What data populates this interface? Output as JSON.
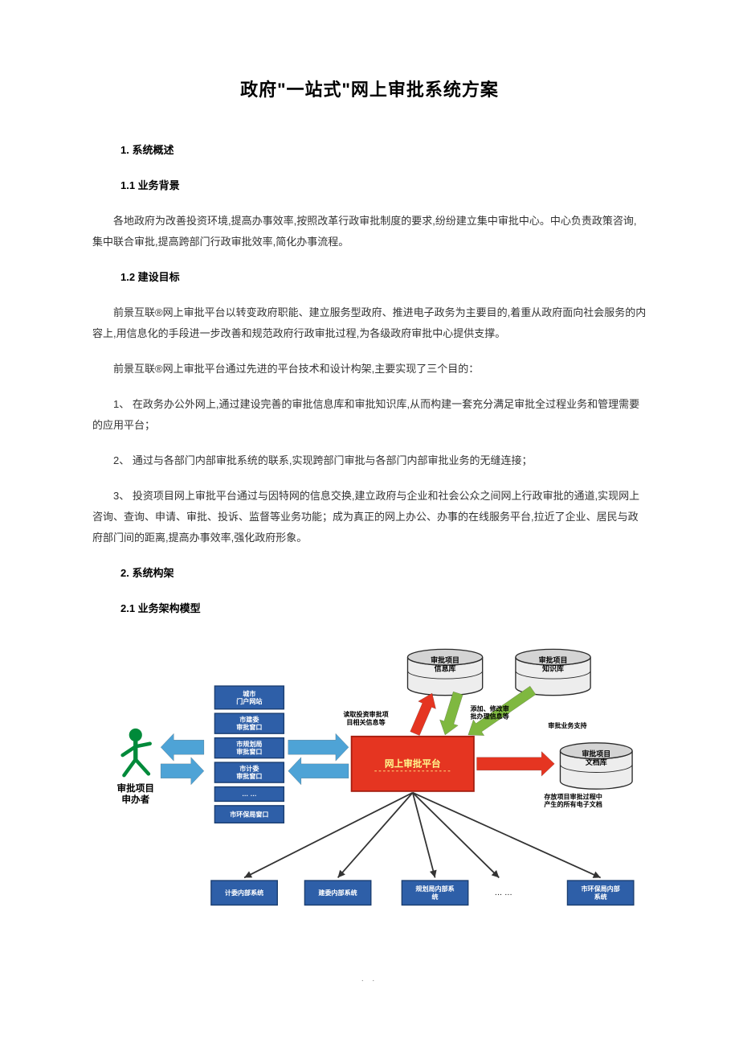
{
  "title": "政府\"一站式\"网上审批系统方案",
  "s1": {
    "heading": "1.  系统概述"
  },
  "s1_1": {
    "heading": "1.1  业务背景",
    "p1": "各地政府为改善投资环境,提高办事效率,按照改革行政审批制度的要求,纷纷建立集中审批中心。中心负责政策咨询,集中联合审批,提高跨部门行政审批效率,简化办事流程。"
  },
  "s1_2": {
    "heading": "1.2  建设目标",
    "p1": "前景互联®网上审批平台以转变政府职能、建立服务型政府、推进电子政务为主要目的,着重从政府面向社会服务的内容上,用信息化的手段进一步改善和规范政府行政审批过程,为各级政府审批中心提供支撑。",
    "p2": "前景互联®网上审批平台通过先进的平台技术和设计构架,主要实现了三个目的：",
    "li1": "1、  在政务办公外网上,通过建设完善的审批信息库和审批知识库,从而构建一套充分满足审批全过程业务和管理需要的应用平台；",
    "li2": "2、  通过与各部门内部审批系统的联系,实现跨部门审批与各部门内部审批业务的无缝连接；",
    "li3": "3、  投资项目网上审批平台通过与因特网的信息交换,建立政府与企业和社会公众之间网上行政审批的通道,实现网上咨询、查询、申请、审批、投诉、监督等业务功能；成为真正的网上办公、办事的在线服务平台,拉近了企业、居民与政府部门间的距离,提高办事效率,强化政府形象。"
  },
  "s2": {
    "heading": "2.  系统构架"
  },
  "s2_1": {
    "heading": "2.1  业务架构模型"
  },
  "diagram": {
    "colors": {
      "blue_fill": "#2e5fa8",
      "blue_border": "#1a3d6f",
      "red_fill": "#e53521",
      "red_border": "#a51d0f",
      "green_arrow": "#7fb840",
      "blue_arrow": "#4ea3d6",
      "dark_arrow": "#333333",
      "cyl_top": "#d4d4d4",
      "cyl_side": "#ededed",
      "cyl_border": "#2b2b2b",
      "person": "#008a3a",
      "yellow": "#fff68c",
      "text_black": "#000000",
      "text_white": "#ffffff"
    },
    "labels": {
      "applicant": "审批项目\n申办者",
      "portal": "城市\n门户网站",
      "win1": "市建委\n审批窗口",
      "win2": "市规划局\n审批窗口",
      "win3": "市计委\n审批窗口",
      "win_dots": "… …",
      "win4": "市环保局窗口",
      "platform": "网上审批平台",
      "cyl_info": "审批项目\n信息库",
      "cyl_know": "审批项目\n知识库",
      "cyl_doc": "审批项目\n文档库",
      "note_left": "读取投资审批项\n目相关信息等",
      "note_mid": "添加、修改审\n批办理信息等",
      "note_right": "审批业务支持",
      "note_doc": "存放项目审批过程中\n产生的所有电子文档",
      "sys1": "计委内部系统",
      "sys2": "建委内部系统",
      "sys3": "规划局内部系\n统",
      "sys_dots": "… …",
      "sys4": "市环保局内部\n系统"
    }
  },
  "footer": ".    ."
}
